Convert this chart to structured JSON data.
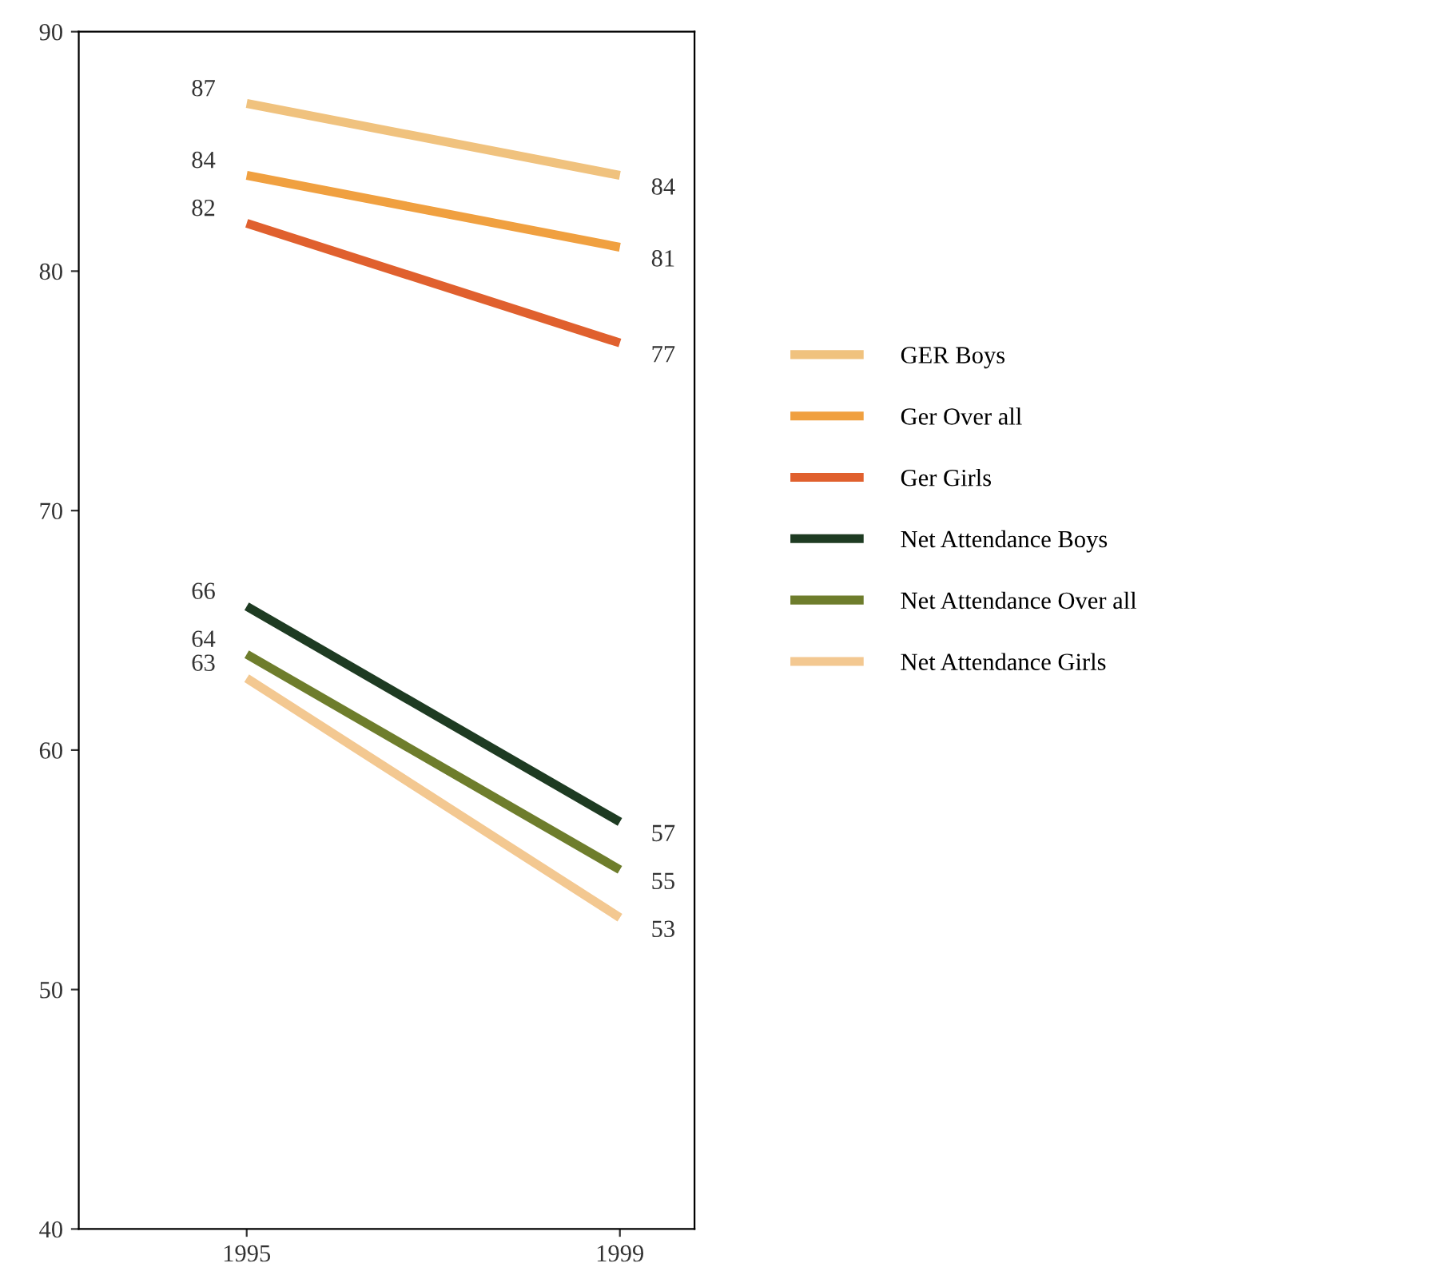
{
  "chart_data": {
    "type": "line",
    "categories": [
      "1995",
      "1999"
    ],
    "series": [
      {
        "name": "GER Boys",
        "color": "#f0c27e",
        "values": [
          87,
          84
        ]
      },
      {
        "name": "Ger Over all",
        "color": "#f0a040",
        "values": [
          84,
          81
        ]
      },
      {
        "name": "Ger Girls",
        "color": "#e0602e",
        "values": [
          82,
          77
        ]
      },
      {
        "name": "Net Attendance Boys",
        "color": "#1e3b22",
        "values": [
          66,
          57
        ]
      },
      {
        "name": "Net Attendance Over all",
        "color": "#6e7d2c",
        "values": [
          64,
          55
        ]
      },
      {
        "name": "Net Attendance Girls",
        "color": "#f3c891",
        "values": [
          63,
          53
        ]
      }
    ],
    "ylim": [
      40,
      90
    ],
    "yticks": [
      40,
      50,
      60,
      70,
      80,
      90
    ],
    "data_labels": true,
    "legend": "right",
    "grid": false,
    "marker": "none",
    "line_style": "solid"
  }
}
